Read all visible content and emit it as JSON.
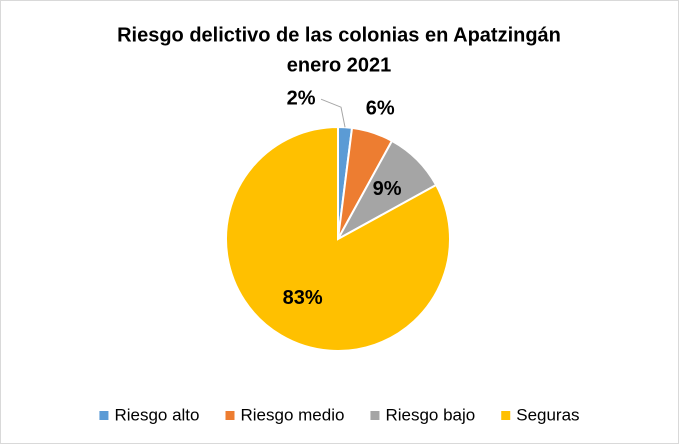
{
  "chart_data": {
    "type": "pie",
    "title": "Riesgo delictivo de las colonias en Apatzingán",
    "subtitle": "enero 2021",
    "categories": [
      "Riesgo alto",
      "Riesgo medio",
      "Riesgo bajo",
      "Seguras"
    ],
    "values": [
      2,
      6,
      9,
      83
    ],
    "value_labels": [
      "2%",
      "6%",
      "9%",
      "83%"
    ],
    "colors": [
      "#5b9bd5",
      "#ed7d31",
      "#a5a5a5",
      "#ffc000"
    ],
    "legend": "bottom"
  }
}
